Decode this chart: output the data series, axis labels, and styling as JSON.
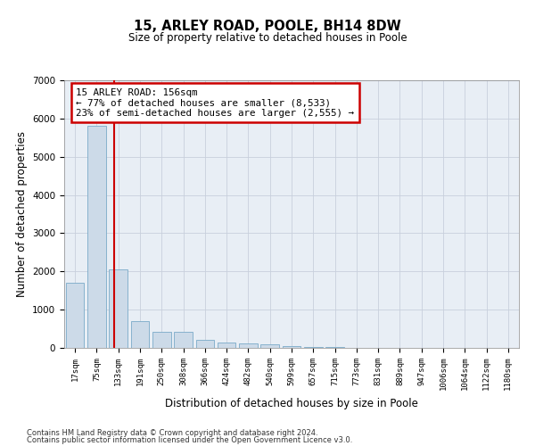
{
  "title1": "15, ARLEY ROAD, POOLE, BH14 8DW",
  "title2": "Size of property relative to detached houses in Poole",
  "xlabel": "Distribution of detached houses by size in Poole",
  "ylabel": "Number of detached properties",
  "bin_labels": [
    "17sqm",
    "75sqm",
    "133sqm",
    "191sqm",
    "250sqm",
    "308sqm",
    "366sqm",
    "424sqm",
    "482sqm",
    "540sqm",
    "599sqm",
    "657sqm",
    "715sqm",
    "773sqm",
    "831sqm",
    "889sqm",
    "947sqm",
    "1006sqm",
    "1064sqm",
    "1122sqm",
    "1180sqm"
  ],
  "bar_values": [
    1700,
    5800,
    2050,
    700,
    430,
    430,
    220,
    150,
    110,
    90,
    50,
    30,
    20,
    10,
    5,
    5,
    3,
    2,
    1,
    1,
    1
  ],
  "bar_color": "#ccdae8",
  "bar_edge_color": "#7aaac8",
  "grid_color": "#c8d0dc",
  "annotation_line1": "15 ARLEY ROAD: 156sqm",
  "annotation_line2": "← 77% of detached houses are smaller (8,533)",
  "annotation_line3": "23% of semi-detached houses are larger (2,555) →",
  "vline_color": "#cc0000",
  "vline_x_index": 1.82,
  "ylim": [
    0,
    7000
  ],
  "yticks": [
    0,
    1000,
    2000,
    3000,
    4000,
    5000,
    6000,
    7000
  ],
  "bg_color": "#e8eef5",
  "footnote1": "Contains HM Land Registry data © Crown copyright and database right 2024.",
  "footnote2": "Contains public sector information licensed under the Open Government Licence v3.0."
}
